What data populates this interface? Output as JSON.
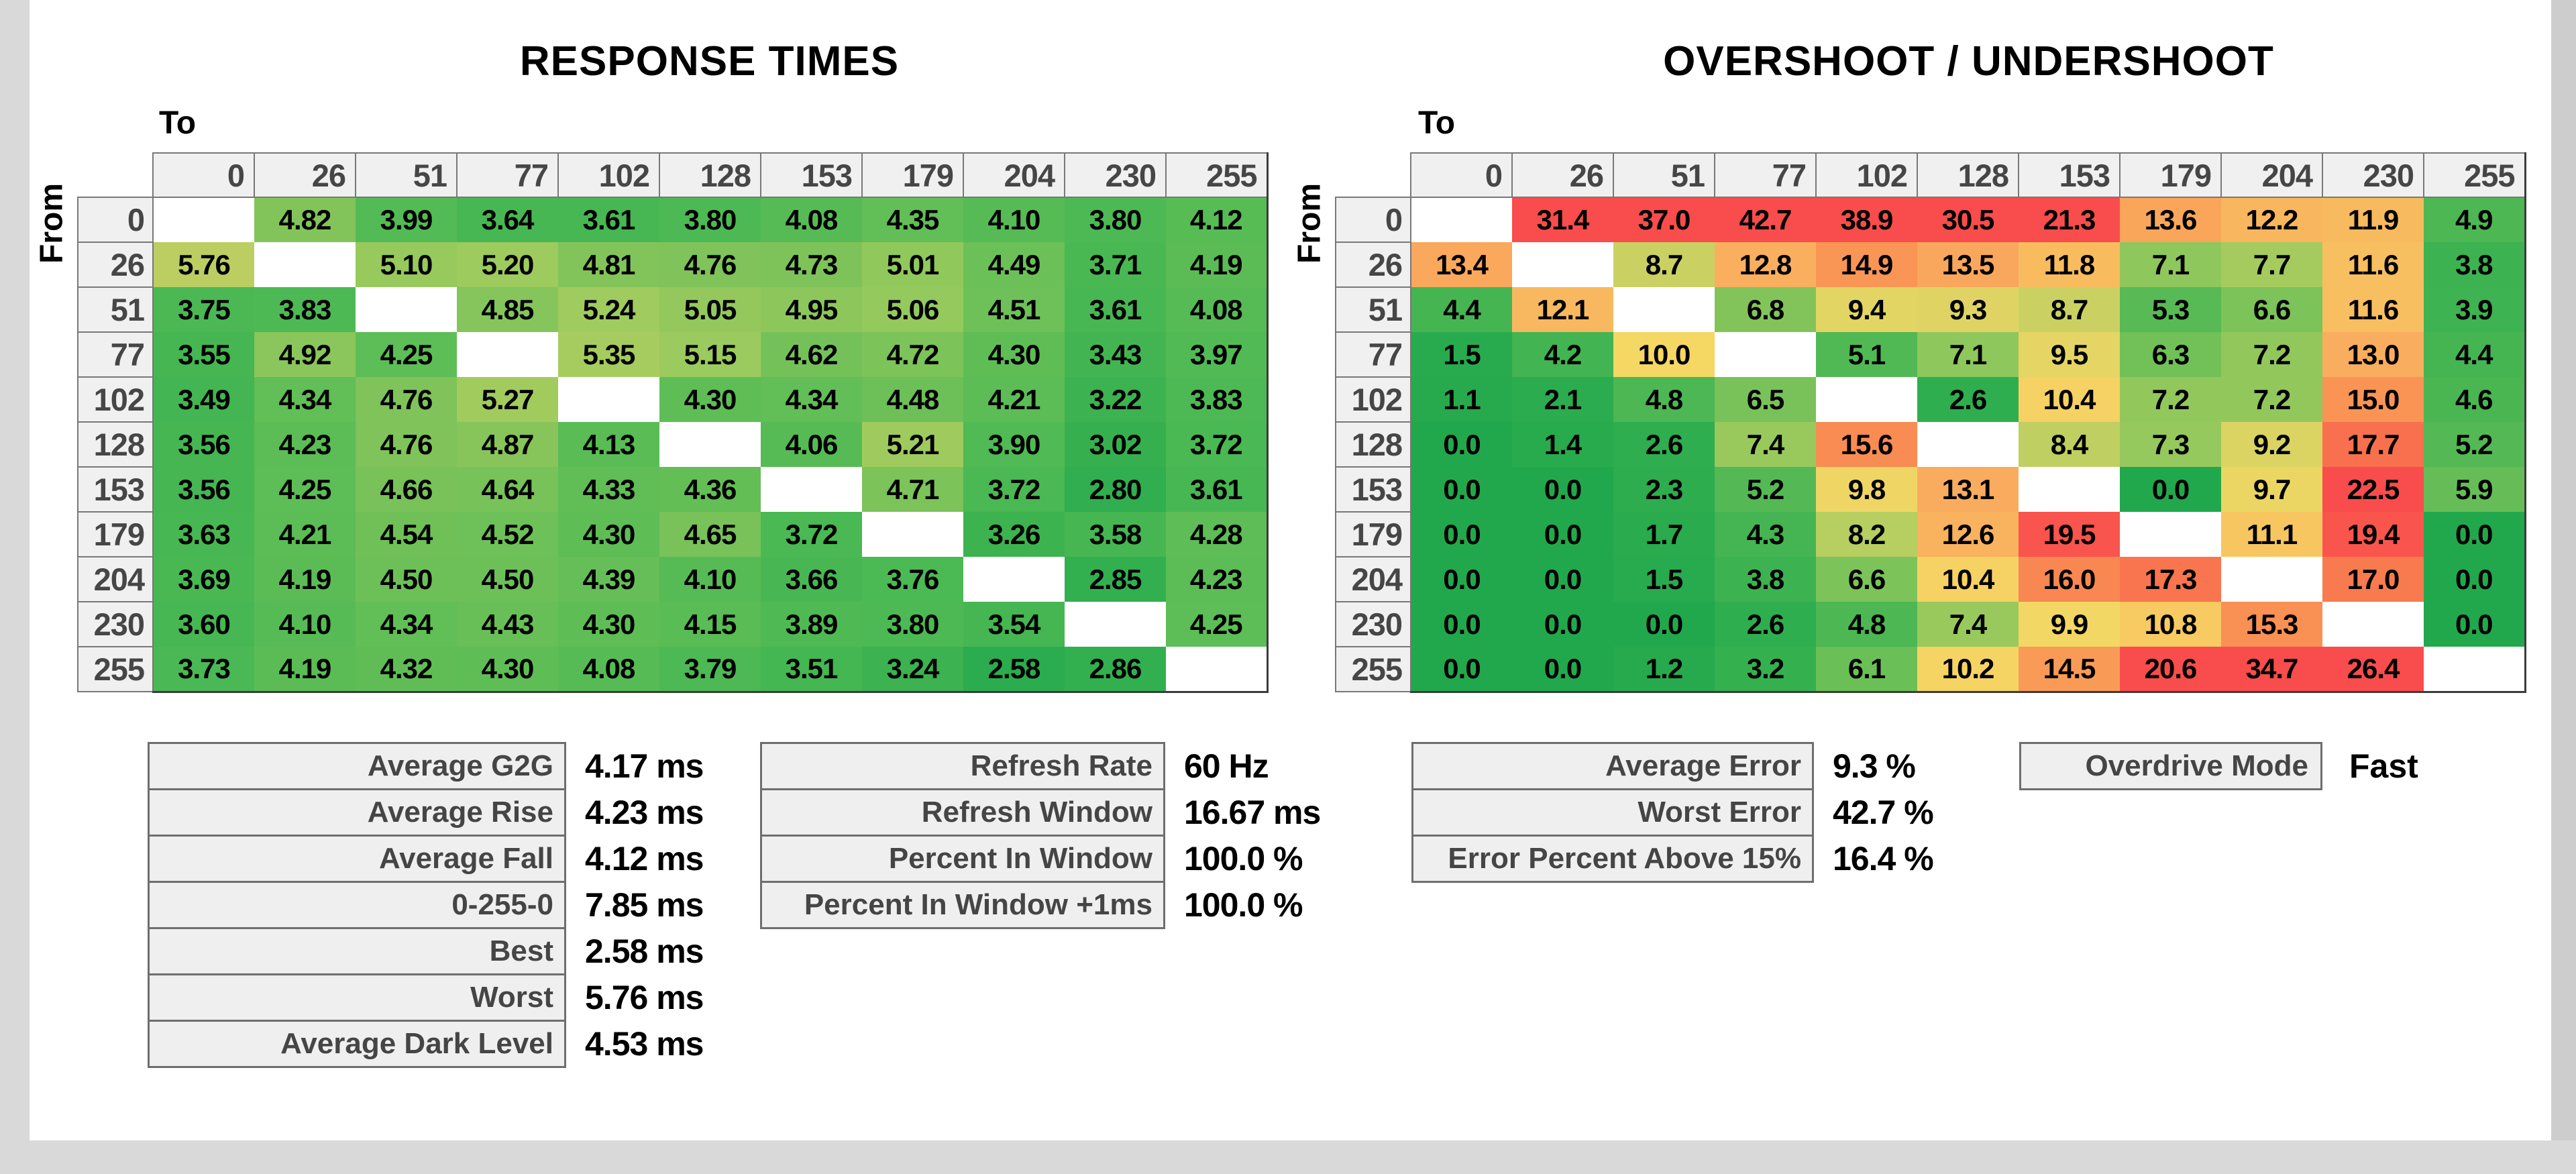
{
  "axis_labels": {
    "to": "To",
    "from": "From"
  },
  "colors": {
    "outer_background": "#D9D9D9",
    "panel_background": "#FFFFFF",
    "scroll_strip": "#CDCDCD",
    "header_cell_background": "#F0F0F0",
    "header_cell_border": "#787878",
    "table_outer_border": "#3C3C3C",
    "stats_cell_background": "#EFEFEF",
    "stats_cell_border": "#6E6E6E",
    "label_text": "#464646",
    "value_text": "#000000"
  },
  "chart_data": [
    {
      "type": "heatmap",
      "title": "RESPONSE TIMES",
      "xlabel": "To",
      "ylabel": "From",
      "unit": "ms",
      "decimals": 2,
      "categories": [
        "0",
        "26",
        "51",
        "77",
        "102",
        "128",
        "153",
        "179",
        "204",
        "230",
        "255"
      ],
      "rows": [
        [
          null,
          4.82,
          3.99,
          3.64,
          3.61,
          3.8,
          4.08,
          4.35,
          4.1,
          3.8,
          4.12
        ],
        [
          5.76,
          null,
          5.1,
          5.2,
          4.81,
          4.76,
          4.73,
          5.01,
          4.49,
          3.71,
          4.19
        ],
        [
          3.75,
          3.83,
          null,
          4.85,
          5.24,
          5.05,
          4.95,
          5.06,
          4.51,
          3.61,
          4.08
        ],
        [
          3.55,
          4.92,
          4.25,
          null,
          5.35,
          5.15,
          4.62,
          4.72,
          4.3,
          3.43,
          3.97
        ],
        [
          3.49,
          4.34,
          4.76,
          5.27,
          null,
          4.3,
          4.34,
          4.48,
          4.21,
          3.22,
          3.83
        ],
        [
          3.56,
          4.23,
          4.76,
          4.87,
          4.13,
          null,
          4.06,
          5.21,
          3.9,
          3.02,
          3.72
        ],
        [
          3.56,
          4.25,
          4.66,
          4.64,
          4.33,
          4.36,
          null,
          4.71,
          3.72,
          2.8,
          3.61
        ],
        [
          3.63,
          4.21,
          4.54,
          4.52,
          4.3,
          4.65,
          3.72,
          null,
          3.26,
          3.58,
          4.28
        ],
        [
          3.69,
          4.19,
          4.5,
          4.5,
          4.39,
          4.1,
          3.66,
          3.76,
          null,
          2.85,
          4.23
        ],
        [
          3.6,
          4.1,
          4.34,
          4.43,
          4.3,
          4.15,
          3.89,
          3.8,
          3.54,
          null,
          4.25
        ],
        [
          3.73,
          4.19,
          4.32,
          4.3,
          4.08,
          3.79,
          3.51,
          3.24,
          2.58,
          2.86,
          null
        ]
      ],
      "color_scale": [
        [
          2.58,
          "#2BAC4E"
        ],
        [
          3.2,
          "#3BB250"
        ],
        [
          3.8,
          "#4CB954"
        ],
        [
          4.3,
          "#5FBD56"
        ],
        [
          4.8,
          "#82C45A"
        ],
        [
          5.2,
          "#9ECB5E"
        ],
        [
          5.5,
          "#AECD60"
        ],
        [
          5.76,
          "#BCCE62"
        ]
      ]
    },
    {
      "type": "heatmap",
      "title": "OVERSHOOT / UNDERSHOOT",
      "xlabel": "To",
      "ylabel": "From",
      "unit": "%",
      "decimals": 1,
      "categories": [
        "0",
        "26",
        "51",
        "77",
        "102",
        "128",
        "153",
        "179",
        "204",
        "230",
        "255"
      ],
      "rows": [
        [
          null,
          31.4,
          37.0,
          42.7,
          38.9,
          30.5,
          21.3,
          13.6,
          12.2,
          11.9,
          4.9
        ],
        [
          13.4,
          null,
          8.7,
          12.8,
          14.9,
          13.5,
          11.8,
          7.1,
          7.7,
          11.6,
          3.8
        ],
        [
          4.4,
          12.1,
          null,
          6.8,
          9.4,
          9.3,
          8.7,
          5.3,
          6.6,
          11.6,
          3.9
        ],
        [
          1.5,
          4.2,
          10.0,
          null,
          5.1,
          7.1,
          9.5,
          6.3,
          7.2,
          13.0,
          4.4
        ],
        [
          1.1,
          2.1,
          4.8,
          6.5,
          null,
          2.6,
          10.4,
          7.2,
          7.2,
          15.0,
          4.6
        ],
        [
          0.0,
          1.4,
          2.6,
          7.4,
          15.6,
          null,
          8.4,
          7.3,
          9.2,
          17.7,
          5.2
        ],
        [
          0.0,
          0.0,
          2.3,
          5.2,
          9.8,
          13.1,
          null,
          0.0,
          9.7,
          22.5,
          5.9
        ],
        [
          0.0,
          0.0,
          1.7,
          4.3,
          8.2,
          12.6,
          19.5,
          null,
          11.1,
          19.4,
          0.0
        ],
        [
          0.0,
          0.0,
          1.5,
          3.8,
          6.6,
          10.4,
          16.0,
          17.3,
          null,
          17.0,
          0.0
        ],
        [
          0.0,
          0.0,
          0.0,
          2.6,
          4.8,
          7.4,
          9.9,
          10.8,
          15.3,
          null,
          0.0
        ],
        [
          0.0,
          0.0,
          1.2,
          3.2,
          6.1,
          10.2,
          14.5,
          20.6,
          34.7,
          26.4,
          null
        ]
      ],
      "color_scale": [
        [
          0,
          "#22A84C"
        ],
        [
          2,
          "#2AAC4E"
        ],
        [
          3,
          "#33AF4F"
        ],
        [
          4,
          "#3FB351"
        ],
        [
          5,
          "#4FB853"
        ],
        [
          6,
          "#68BE57"
        ],
        [
          7,
          "#8AC65B"
        ],
        [
          8,
          "#B0CD60"
        ],
        [
          9,
          "#D5D363"
        ],
        [
          10,
          "#F5D764"
        ],
        [
          11,
          "#F7C761"
        ],
        [
          12,
          "#F8B95F"
        ],
        [
          13,
          "#F9AD5E"
        ],
        [
          14,
          "#F9A159"
        ],
        [
          15,
          "#F99455"
        ],
        [
          16,
          "#F88751"
        ],
        [
          17,
          "#F87A4F"
        ],
        [
          18,
          "#F86B4E"
        ],
        [
          19,
          "#F95B4D"
        ],
        [
          20,
          "#F94C4C"
        ]
      ]
    }
  ],
  "summary_tables": [
    {
      "id": "response_summary",
      "rows": [
        {
          "label": "Average G2G",
          "value": "4.17 ms"
        },
        {
          "label": "Average Rise",
          "value": "4.23 ms"
        },
        {
          "label": "Average Fall",
          "value": "4.12 ms"
        },
        {
          "label": "0-255-0",
          "value": "7.85 ms"
        },
        {
          "label": "Best",
          "value": "2.58 ms"
        },
        {
          "label": "Worst",
          "value": "5.76 ms"
        },
        {
          "label": "Average Dark Level",
          "value": "4.53 ms"
        }
      ]
    },
    {
      "id": "refresh_summary",
      "rows": [
        {
          "label": "Refresh Rate",
          "value": "60 Hz"
        },
        {
          "label": "Refresh Window",
          "value": "16.67 ms"
        },
        {
          "label": "Percent In Window",
          "value": "100.0 %"
        },
        {
          "label": "Percent In Window +1ms",
          "value": "100.0 %"
        }
      ]
    },
    {
      "id": "error_summary",
      "rows": [
        {
          "label": "Average Error",
          "value": "9.3 %"
        },
        {
          "label": "Worst Error",
          "value": "42.7 %"
        },
        {
          "label": "Error Percent Above 15%",
          "value": "16.4 %"
        }
      ]
    }
  ],
  "overdrive": {
    "label": "Overdrive Mode",
    "value": "Fast"
  }
}
